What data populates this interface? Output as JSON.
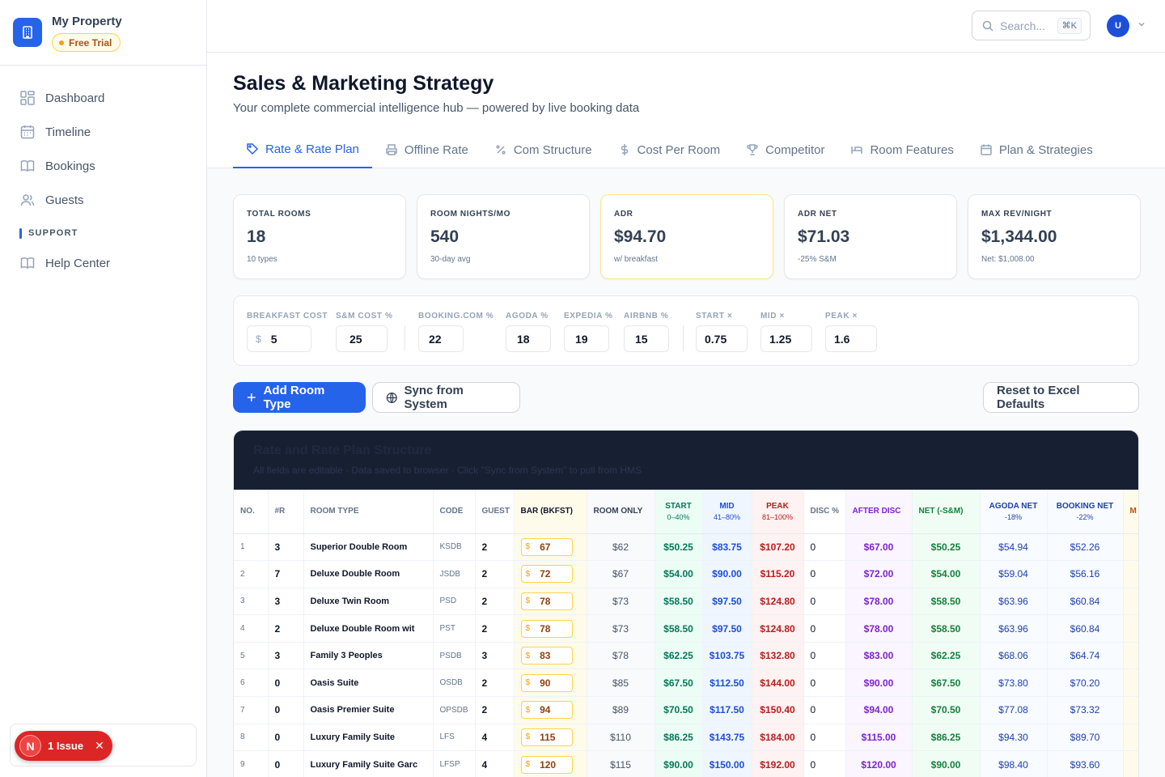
{
  "property": {
    "name": "My Property",
    "badge": "Free Trial"
  },
  "nav": {
    "items": [
      {
        "label": "Dashboard",
        "icon": "grid-icon"
      },
      {
        "label": "Timeline",
        "icon": "calendar-icon"
      },
      {
        "label": "Bookings",
        "icon": "book-icon"
      },
      {
        "label": "Guests",
        "icon": "users-icon"
      }
    ],
    "section": "SUPPORT",
    "help": "Help Center"
  },
  "issue": {
    "letter": "N",
    "label": "1 Issue"
  },
  "topbar": {
    "search_placeholder": "Search...",
    "shortcut": "⌘K",
    "avatar": "U"
  },
  "page": {
    "title": "Sales & Marketing Strategy",
    "subtitle": "Your complete commercial intelligence hub — powered by live booking data"
  },
  "tabs": [
    "Rate & Rate Plan",
    "Offline Rate",
    "Com Structure",
    "Cost Per Room",
    "Competitor",
    "Room Features",
    "Plan & Strategies"
  ],
  "stats": [
    {
      "label": "TOTAL ROOMS",
      "value": "18",
      "sub": "10 types"
    },
    {
      "label": "ROOM NIGHTS/MO",
      "value": "540",
      "sub": "30-day avg"
    },
    {
      "label": "ADR",
      "value": "$94.70",
      "sub": "w/ breakfast"
    },
    {
      "label": "ADR NET",
      "value": "$71.03",
      "sub": "-25% S&M"
    },
    {
      "label": "MAX REV/NIGHT",
      "value": "$1,344.00",
      "sub": "Net: $1,008.00"
    }
  ],
  "params": {
    "breakfast": {
      "label": "BREAKFAST COST",
      "currency": "$",
      "value": "5"
    },
    "sm": {
      "label": "S&M COST %",
      "value": "25"
    },
    "booking": {
      "label": "BOOKING.COM %",
      "value": "22"
    },
    "agoda": {
      "label": "AGODA %",
      "value": "18"
    },
    "expedia": {
      "label": "EXPEDIA %",
      "value": "19"
    },
    "airbnb": {
      "label": "AIRBNB %",
      "value": "15"
    },
    "start": {
      "label": "START ×",
      "value": "0.75"
    },
    "mid": {
      "label": "MID ×",
      "value": "1.25"
    },
    "peak": {
      "label": "PEAK ×",
      "value": "1.6"
    }
  },
  "actions": {
    "add": "Add Room Type",
    "sync": "Sync from System",
    "reset": "Reset to Excel Defaults"
  },
  "table": {
    "title": "Rate and Rate Plan Structure",
    "description": "All fields are editable · Data saved to browser · Click \"Sync from System\" to pull from HMS",
    "headers": {
      "no": "NO.",
      "rooms": "#R",
      "type": "ROOM TYPE",
      "code": "CODE",
      "guest": "GUEST",
      "bar": "BAR (BKFST)",
      "room_only": "ROOM ONLY",
      "start": "START",
      "start_sub": "0–40%",
      "mid": "MID",
      "mid_sub": "41–80%",
      "peak": "PEAK",
      "peak_sub": "81–100%",
      "disc": "DISC %",
      "after": "AFTER DISC",
      "net": "NET (-S&M)",
      "agoda": "AGODA NET",
      "agoda_sub": "-18%",
      "booking": "BOOKING NET",
      "booking_sub": "-22%",
      "more": "M"
    },
    "currency": "$",
    "rows": [
      {
        "no": "1",
        "r": "3",
        "type": "Superior Double Room",
        "code": "KSDB",
        "guest": "2",
        "bar": "67",
        "ro": "$62",
        "start": "$50.25",
        "mid": "$83.75",
        "peak": "$107.20",
        "disc": "0",
        "after": "$67.00",
        "net": "$50.25",
        "agoda": "$54.94",
        "booking": "$52.26"
      },
      {
        "no": "2",
        "r": "7",
        "type": "Deluxe Double Room",
        "code": "JSDB",
        "guest": "2",
        "bar": "72",
        "ro": "$67",
        "start": "$54.00",
        "mid": "$90.00",
        "peak": "$115.20",
        "disc": "0",
        "after": "$72.00",
        "net": "$54.00",
        "agoda": "$59.04",
        "booking": "$56.16"
      },
      {
        "no": "3",
        "r": "3",
        "type": "Deluxe Twin Room",
        "code": "PSD",
        "guest": "2",
        "bar": "78",
        "ro": "$73",
        "start": "$58.50",
        "mid": "$97.50",
        "peak": "$124.80",
        "disc": "0",
        "after": "$78.00",
        "net": "$58.50",
        "agoda": "$63.96",
        "booking": "$60.84"
      },
      {
        "no": "4",
        "r": "2",
        "type": "Deluxe Double Room wit",
        "code": "PST",
        "guest": "2",
        "bar": "78",
        "ro": "$73",
        "start": "$58.50",
        "mid": "$97.50",
        "peak": "$124.80",
        "disc": "0",
        "after": "$78.00",
        "net": "$58.50",
        "agoda": "$63.96",
        "booking": "$60.84"
      },
      {
        "no": "5",
        "r": "3",
        "type": "Family 3 Peoples",
        "code": "PSDB",
        "guest": "3",
        "bar": "83",
        "ro": "$78",
        "start": "$62.25",
        "mid": "$103.75",
        "peak": "$132.80",
        "disc": "0",
        "after": "$83.00",
        "net": "$62.25",
        "agoda": "$68.06",
        "booking": "$64.74"
      },
      {
        "no": "6",
        "r": "0",
        "type": "Oasis Suite",
        "code": "OSDB",
        "guest": "2",
        "bar": "90",
        "ro": "$85",
        "start": "$67.50",
        "mid": "$112.50",
        "peak": "$144.00",
        "disc": "0",
        "after": "$90.00",
        "net": "$67.50",
        "agoda": "$73.80",
        "booking": "$70.20"
      },
      {
        "no": "7",
        "r": "0",
        "type": "Oasis Premier Suite",
        "code": "OPSDB",
        "guest": "2",
        "bar": "94",
        "ro": "$89",
        "start": "$70.50",
        "mid": "$117.50",
        "peak": "$150.40",
        "disc": "0",
        "after": "$94.00",
        "net": "$70.50",
        "agoda": "$77.08",
        "booking": "$73.32"
      },
      {
        "no": "8",
        "r": "0",
        "type": "Luxury Family Suite",
        "code": "LFS",
        "guest": "4",
        "bar": "115",
        "ro": "$110",
        "start": "$86.25",
        "mid": "$143.75",
        "peak": "$184.00",
        "disc": "0",
        "after": "$115.00",
        "net": "$86.25",
        "agoda": "$94.30",
        "booking": "$89.70"
      },
      {
        "no": "9",
        "r": "0",
        "type": "Luxury Family Suite Garc",
        "code": "LFSP",
        "guest": "4",
        "bar": "120",
        "ro": "$115",
        "start": "$90.00",
        "mid": "$150.00",
        "peak": "$192.00",
        "disc": "0",
        "after": "$120.00",
        "net": "$90.00",
        "agoda": "$98.40",
        "booking": "$93.60"
      }
    ]
  }
}
